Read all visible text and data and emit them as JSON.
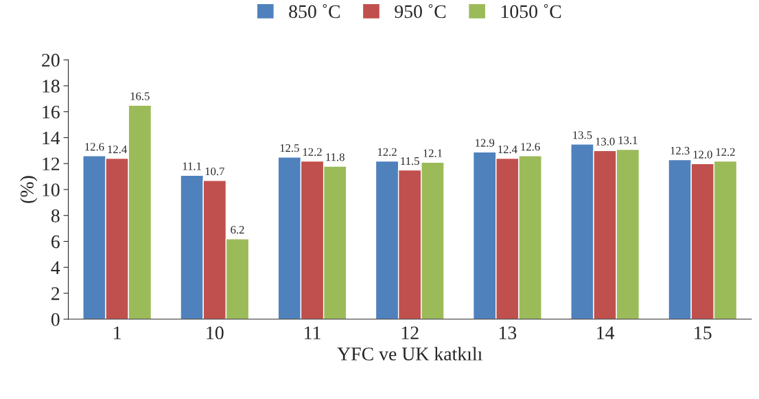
{
  "chart_data": {
    "type": "bar",
    "xlabel": "YFC ve UK katkılı",
    "ylabel": "(%)",
    "categories": [
      "1",
      "10",
      "11",
      "12",
      "13",
      "14",
      "15"
    ],
    "series": [
      {
        "name": "850 ˚C",
        "color": "#4f81bd",
        "values": [
          12.6,
          11.1,
          12.5,
          12.2,
          12.9,
          13.5,
          12.3
        ],
        "value_labels": [
          "12.6",
          "11.1",
          "12.5",
          "12.2",
          "12.9",
          "13.5",
          "12.3"
        ]
      },
      {
        "name": "950 ˚C",
        "color": "#c0504d",
        "values": [
          12.4,
          10.7,
          12.2,
          11.5,
          12.4,
          13,
          12
        ],
        "value_labels": [
          "12.4",
          "10.7",
          "12.2",
          "11.5",
          "12.4",
          "13.0",
          "12.0"
        ]
      },
      {
        "name": "1050 ˚C",
        "color": "#9bbb59",
        "values": [
          16.5,
          6.2,
          11.8,
          12.1,
          12.6,
          13.1,
          12.2
        ],
        "value_labels": [
          "16.5",
          "6.2",
          "11.8",
          "12.1",
          "12.6",
          "13.1",
          "12.2"
        ]
      }
    ],
    "ylim": [
      0,
      20
    ],
    "yticks": [
      0,
      2,
      4,
      6,
      8,
      10,
      12,
      14,
      16,
      18,
      20
    ],
    "legend": "top",
    "grid": false
  }
}
